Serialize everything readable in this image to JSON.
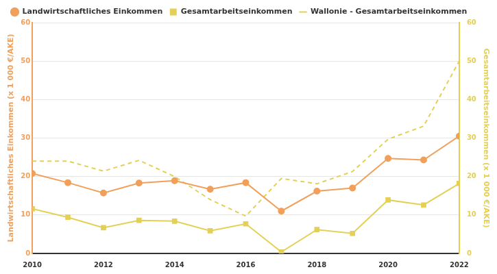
{
  "chart_data": {
    "type": "line",
    "x": [
      2010,
      2011,
      2012,
      2013,
      2014,
      2015,
      2016,
      2017,
      2018,
      2019,
      2020,
      2021,
      2022
    ],
    "xlim": [
      2010,
      2022
    ],
    "xticks": [
      2010,
      2012,
      2014,
      2016,
      2018,
      2020,
      2022
    ],
    "y_label": "Landwirtschaftliches Einkommen (x 1 000 €/AKE)",
    "ylim": [
      0,
      60
    ],
    "yticks": [
      0,
      10,
      20,
      30,
      40,
      50,
      60
    ],
    "y2_label": "Gesamtarbeitseinkommen (x 1 000 €/AKE)",
    "y2lim": [
      0,
      60
    ],
    "y2ticks": [
      0,
      10,
      20,
      30,
      40,
      50,
      60
    ],
    "grid": true,
    "legend": "top",
    "series": [
      {
        "name": "Landwirtschaftliches Einkommen",
        "color": "#f0a05a",
        "marker": "circle",
        "line_style": "solid",
        "axis": "y",
        "values": [
          20.8,
          18.4,
          15.7,
          18.3,
          18.9,
          16.7,
          18.4,
          11.0,
          16.2,
          17.0,
          24.7,
          24.3,
          30.5
        ]
      },
      {
        "name": "Gesamtarbeitseinkommen",
        "color": "#e4d055",
        "marker": "square",
        "line_style": "solid",
        "axis": "y2",
        "values": [
          11.6,
          9.4,
          6.7,
          8.6,
          8.4,
          5.9,
          7.7,
          0.4,
          6.2,
          5.2,
          13.9,
          12.6,
          18.2
        ]
      },
      {
        "name": "Wallonie - Gesamtarbeitseinkommen",
        "color": "#e4d055",
        "marker": "none",
        "line_style": "dashed",
        "axis": "y2",
        "values": [
          24.0,
          24.0,
          21.4,
          24.2,
          20.0,
          14.0,
          9.7,
          19.5,
          18.1,
          21.3,
          29.7,
          33.1,
          50.0
        ]
      }
    ]
  }
}
